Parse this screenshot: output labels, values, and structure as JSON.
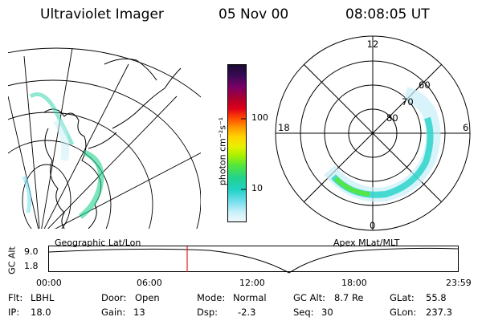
{
  "header": {
    "instrument": "Ultraviolet Imager",
    "date": "05 Nov 00",
    "time": "08:08:05 UT"
  },
  "geo_panel": {
    "label": "Geographic Lat/Lon"
  },
  "polar_panel": {
    "label": "Apex MLat/MLT",
    "mlt_labels": {
      "top": "12",
      "left": "18",
      "right": "6",
      "bottom": "0"
    },
    "lat_labels": [
      "80",
      "70",
      "60"
    ]
  },
  "colorbar": {
    "unit_label": "photon cm⁻²s⁻¹",
    "ticks": [
      "100",
      "10"
    ],
    "colors": [
      "#1a0a33",
      "#3a0a55",
      "#7a0066",
      "#b0002a",
      "#e0001a",
      "#ff4a00",
      "#ff9900",
      "#ffd400",
      "#e8f000",
      "#a8f000",
      "#55e63a",
      "#22d28c",
      "#22d2c8",
      "#7fe0f0",
      "#c8f0f8",
      "#f0f8fc"
    ]
  },
  "timeline": {
    "ylabel": "GC Alt",
    "yticks": [
      "9.0",
      "1.8"
    ],
    "xticks": [
      "00:00",
      "06:00",
      "12:00",
      "18:00",
      "23:59"
    ],
    "current_time_marker": "08:08:05",
    "marker_color": "#e02020"
  },
  "info": {
    "flt_label": "Flt:",
    "flt_value": "LBHL",
    "ip_label": "IP:",
    "ip_value": "18.0",
    "door_label": "Door:",
    "door_value": "Open",
    "gain_label": "Gain:",
    "gain_value": "13",
    "mode_label": "Mode:",
    "mode_value": "Normal",
    "dsp_label": "Dsp:",
    "dsp_value": "-2.3",
    "gcalt_label": "GC Alt:",
    "gcalt_value": "8.7 Re",
    "seq_label": "Seq:",
    "seq_value": "30",
    "glat_label": "GLat:",
    "glat_value": "55.8",
    "glon_label": "GLon:",
    "glon_value": "237.3"
  }
}
